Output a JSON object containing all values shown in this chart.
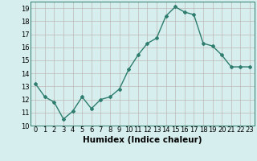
{
  "x": [
    0,
    1,
    2,
    3,
    4,
    5,
    6,
    7,
    8,
    9,
    10,
    11,
    12,
    13,
    14,
    15,
    16,
    17,
    18,
    19,
    20,
    21,
    22,
    23
  ],
  "y": [
    13.2,
    12.2,
    11.8,
    10.5,
    11.1,
    12.2,
    11.3,
    12.0,
    12.2,
    12.8,
    14.3,
    15.4,
    16.3,
    16.7,
    18.4,
    19.1,
    18.7,
    18.5,
    16.3,
    16.1,
    15.4,
    14.5,
    14.5,
    14.5
  ],
  "line_color": "#2e7d6e",
  "bg_color": "#d6eeee",
  "grid_color": "#c0b8b8",
  "xlabel": "Humidex (Indice chaleur)",
  "ylim": [
    10,
    19.5
  ],
  "xlim": [
    -0.5,
    23.5
  ],
  "yticks": [
    10,
    11,
    12,
    13,
    14,
    15,
    16,
    17,
    18,
    19
  ],
  "xticks": [
    0,
    1,
    2,
    3,
    4,
    5,
    6,
    7,
    8,
    9,
    10,
    11,
    12,
    13,
    14,
    15,
    16,
    17,
    18,
    19,
    20,
    21,
    22,
    23
  ],
  "tick_label_fontsize": 6,
  "xlabel_fontsize": 7.5,
  "marker": "D",
  "markersize": 2.0,
  "linewidth": 1.0
}
